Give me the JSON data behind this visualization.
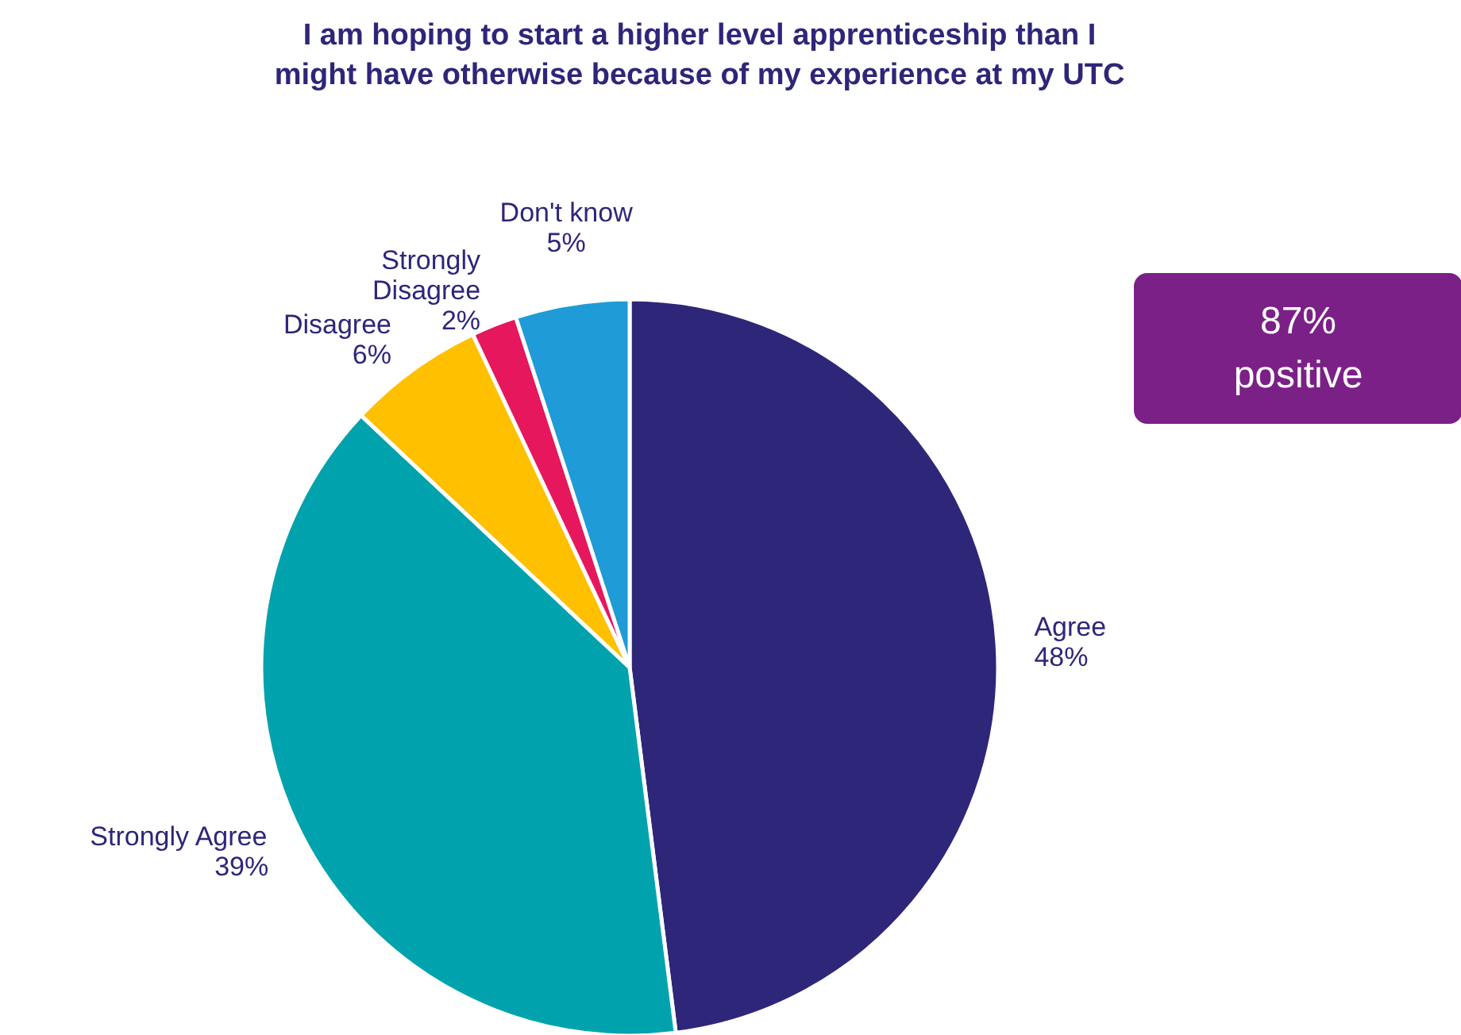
{
  "chart_data": {
    "type": "pie",
    "title": "I am hoping to start a higher level apprenticeship than I might have otherwise because of my experience at my UTC",
    "categories": [
      "Agree",
      "Strongly Agree",
      "Disagree",
      "Strongly Disagree",
      "Don't know"
    ],
    "values": [
      48,
      39,
      6,
      2,
      5
    ],
    "colors": [
      "#2e2679",
      "#00a3ad",
      "#ffc000",
      "#e6175c",
      "#1f9bd7"
    ],
    "value_labels": [
      "48%",
      "39%",
      "6%",
      "2%",
      "5%"
    ],
    "annotations": [
      "87% positive"
    ]
  }
}
